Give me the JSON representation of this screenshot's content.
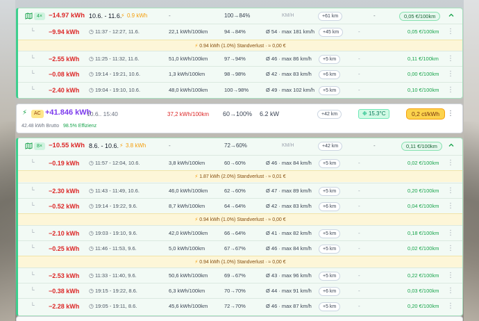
{
  "group1": {
    "count": "4×",
    "energy": "−14.97 kWh",
    "period": "10.6. - 11.6.",
    "loss": "0.9 kWh",
    "dash1": "-",
    "soc": "100→84%",
    "speed_hdr": "KM/H",
    "km": "+61 km",
    "dash2": "-",
    "cost": "0,05 €/100km",
    "trips": [
      {
        "energy": "−9.94 kWh",
        "time": "11:37 - 12:27, 11.6.",
        "consumption": "22,1 kWh/100km",
        "soc": "94→84%",
        "speed": "Ø 54 · max 181 km/h",
        "km": "+45 km",
        "dash": "-",
        "cost": "0,05 €/100km"
      },
      {
        "energy": "−2.55 kWh",
        "time": "11:25 - 11:32, 11.6.",
        "consumption": "51,0 kWh/100km",
        "soc": "97→94%",
        "speed": "Ø 46 · max 86 km/h",
        "km": "+5 km",
        "dash": "-",
        "cost": "0,11 €/100km"
      },
      {
        "energy": "−0.08 kWh",
        "time": "19:14 - 19:21, 10.6.",
        "consumption": "1,3 kWh/100km",
        "soc": "98→98%",
        "speed": "Ø 42 · max 83 km/h",
        "km": "+6 km",
        "dash": "-",
        "cost": "0,00 €/100km"
      },
      {
        "energy": "−2.40 kWh",
        "time": "19:04 - 19:10, 10.6.",
        "consumption": "48,0 kWh/100km",
        "soc": "100→98%",
        "speed": "Ø 49 · max 102 km/h",
        "km": "+5 km",
        "dash": "-",
        "cost": "0,10 €/100km"
      }
    ],
    "loss_rows": [
      "0.94 kWh (1.0%) Standverlust · ≈ 0,00 €"
    ]
  },
  "charge": {
    "type": "AC",
    "energy": "+41.846 kWh",
    "time": "10.6.. 15:40",
    "brutto": "42.48 kWh Brutto",
    "efficiency": "98.5% Effizienz",
    "consumption": "37,2 kWh/100km",
    "soc": "60→100%",
    "power": "6.2 kW",
    "km": "+42 km",
    "temp": "15.3°C",
    "price": "0,2 ct/kWh"
  },
  "group2": {
    "count": "8×",
    "energy": "−10.55 kWh",
    "period": "8.6. - 10.6.",
    "loss": "3.8 kWh",
    "dash1": "-",
    "soc": "72→60%",
    "speed_hdr": "KM/H",
    "km": "+42 km",
    "dash2": "-",
    "cost": "0,11 €/100km",
    "trips": [
      {
        "energy": "−0.19 kWh",
        "time": "11:57 - 12:04, 10.6.",
        "consumption": "3,8 kWh/100km",
        "soc": "60→60%",
        "speed": "Ø 46 · max 84 km/h",
        "km": "+5 km",
        "dash": "-",
        "cost": "0,02 €/100km"
      },
      {
        "energy": "−2.30 kWh",
        "time": "11:43 - 11:49, 10.6.",
        "consumption": "46,0 kWh/100km",
        "soc": "62→60%",
        "speed": "Ø 47 · max 89 km/h",
        "km": "+5 km",
        "dash": "-",
        "cost": "0,20 €/100km"
      },
      {
        "energy": "−0.52 kWh",
        "time": "19:14 - 19:22, 9.6.",
        "consumption": "8,7 kWh/100km",
        "soc": "64→64%",
        "speed": "Ø 42 · max 83 km/h",
        "km": "+6 km",
        "dash": "-",
        "cost": "0,04 €/100km"
      },
      {
        "energy": "−2.10 kWh",
        "time": "19:03 - 19:10, 9.6.",
        "consumption": "42,0 kWh/100km",
        "soc": "66→64%",
        "speed": "Ø 41 · max 82 km/h",
        "km": "+5 km",
        "dash": "-",
        "cost": "0,18 €/100km"
      },
      {
        "energy": "−0.25 kWh",
        "time": "11:46 - 11:53, 9.6.",
        "consumption": "5,0 kWh/100km",
        "soc": "67→67%",
        "speed": "Ø 46 · max 84 km/h",
        "km": "+5 km",
        "dash": "-",
        "cost": "0,02 €/100km"
      },
      {
        "energy": "−2.53 kWh",
        "time": "11:33 - 11:40, 9.6.",
        "consumption": "50,6 kWh/100km",
        "soc": "69→67%",
        "speed": "Ø 43 · max 96 km/h",
        "km": "+5 km",
        "dash": "-",
        "cost": "0,22 €/100km"
      },
      {
        "energy": "−0.38 kWh",
        "time": "19:15 - 19:22, 8.6.",
        "consumption": "6,3 kWh/100km",
        "soc": "70→70%",
        "speed": "Ø 44 · max 91 km/h",
        "km": "+6 km",
        "dash": "-",
        "cost": "0,03 €/100km"
      },
      {
        "energy": "−2.28 kWh",
        "time": "19:05 - 19:11, 8.6.",
        "consumption": "45,6 kWh/100km",
        "soc": "72→70%",
        "speed": "Ø 46 · max 87 km/h",
        "km": "+5 km",
        "dash": "-",
        "cost": "0,20 €/100km"
      }
    ],
    "loss_rows": [
      "1.87 kWh (2.0%) Standverlust · ≈ 0,01 €",
      "0.94 kWh (1.0%) Standverlust · ≈ 0,00 €",
      "0.94 kWh (1.0%) Standverlust · ≈ 0,00 €"
    ]
  },
  "colors": {
    "accent": "#3ecf8e",
    "negative": "#dc2626",
    "loss_bg": "#fdf6d8",
    "price": "#fcd34d"
  },
  "icons": {
    "route": "map-icon",
    "clock": "clock-icon",
    "bolt": "bolt-icon",
    "chevron": "chevron-up-icon",
    "menu": "kebab-icon",
    "temp": "thermometer-icon"
  }
}
